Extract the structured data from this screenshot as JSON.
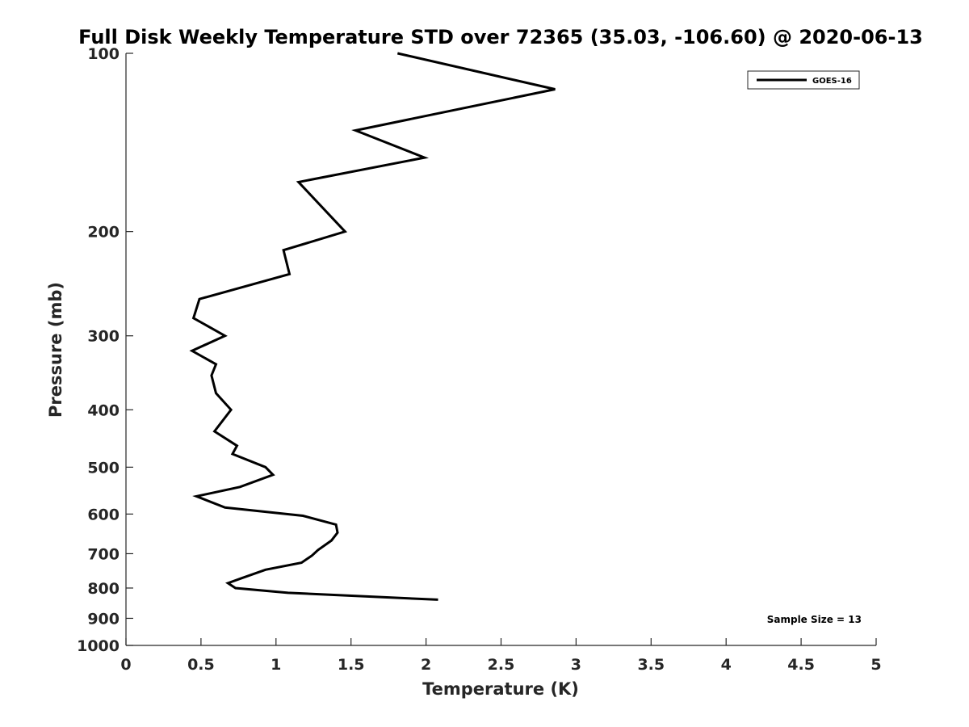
{
  "chart_data": {
    "type": "line",
    "title": "Full Disk Weekly Temperature STD over 72365 (35.03, -106.60) @ 2020-06-13",
    "xlabel": "Temperature (K)",
    "ylabel": "Pressure (mb)",
    "xlim": [
      0,
      5
    ],
    "ylim": [
      100,
      1000
    ],
    "y_scale": "log",
    "y_reversed": true,
    "x_ticks": [
      0,
      0.5,
      1,
      1.5,
      2,
      2.5,
      3,
      3.5,
      4,
      4.5,
      5
    ],
    "x_tick_labels": [
      "0",
      "0.5",
      "1",
      "1.5",
      "2",
      "2.5",
      "3",
      "3.5",
      "4",
      "4.5",
      "5"
    ],
    "y_ticks": [
      100,
      200,
      300,
      400,
      500,
      600,
      700,
      800,
      900,
      1000
    ],
    "y_tick_labels": [
      "100",
      "200",
      "300",
      "400",
      "500",
      "600",
      "700",
      "800",
      "900",
      "1000"
    ],
    "grid": false,
    "legend_position": "top-right",
    "series": [
      {
        "name": "GOES-16",
        "color": "#000000",
        "points": [
          {
            "t": 1.81,
            "p": 100
          },
          {
            "t": 2.86,
            "p": 115
          },
          {
            "t": 1.53,
            "p": 135
          },
          {
            "t": 1.99,
            "p": 150
          },
          {
            "t": 1.15,
            "p": 165
          },
          {
            "t": 1.46,
            "p": 200
          },
          {
            "t": 1.05,
            "p": 215
          },
          {
            "t": 1.09,
            "p": 236
          },
          {
            "t": 0.49,
            "p": 260
          },
          {
            "t": 0.45,
            "p": 280
          },
          {
            "t": 0.66,
            "p": 300
          },
          {
            "t": 0.44,
            "p": 318
          },
          {
            "t": 0.6,
            "p": 335
          },
          {
            "t": 0.57,
            "p": 350
          },
          {
            "t": 0.6,
            "p": 375
          },
          {
            "t": 0.7,
            "p": 400
          },
          {
            "t": 0.59,
            "p": 435
          },
          {
            "t": 0.74,
            "p": 460
          },
          {
            "t": 0.71,
            "p": 475
          },
          {
            "t": 0.93,
            "p": 500
          },
          {
            "t": 0.98,
            "p": 515
          },
          {
            "t": 0.76,
            "p": 540
          },
          {
            "t": 0.47,
            "p": 560
          },
          {
            "t": 0.66,
            "p": 585
          },
          {
            "t": 1.18,
            "p": 604
          },
          {
            "t": 1.4,
            "p": 625
          },
          {
            "t": 1.41,
            "p": 645
          },
          {
            "t": 1.37,
            "p": 665
          },
          {
            "t": 1.28,
            "p": 690
          },
          {
            "t": 1.24,
            "p": 705
          },
          {
            "t": 1.17,
            "p": 725
          },
          {
            "t": 0.93,
            "p": 745
          },
          {
            "t": 0.77,
            "p": 770
          },
          {
            "t": 0.68,
            "p": 785
          },
          {
            "t": 0.73,
            "p": 800
          },
          {
            "t": 1.08,
            "p": 815
          },
          {
            "t": 2.08,
            "p": 837
          }
        ]
      }
    ],
    "annotation": "Sample Size = 13"
  }
}
